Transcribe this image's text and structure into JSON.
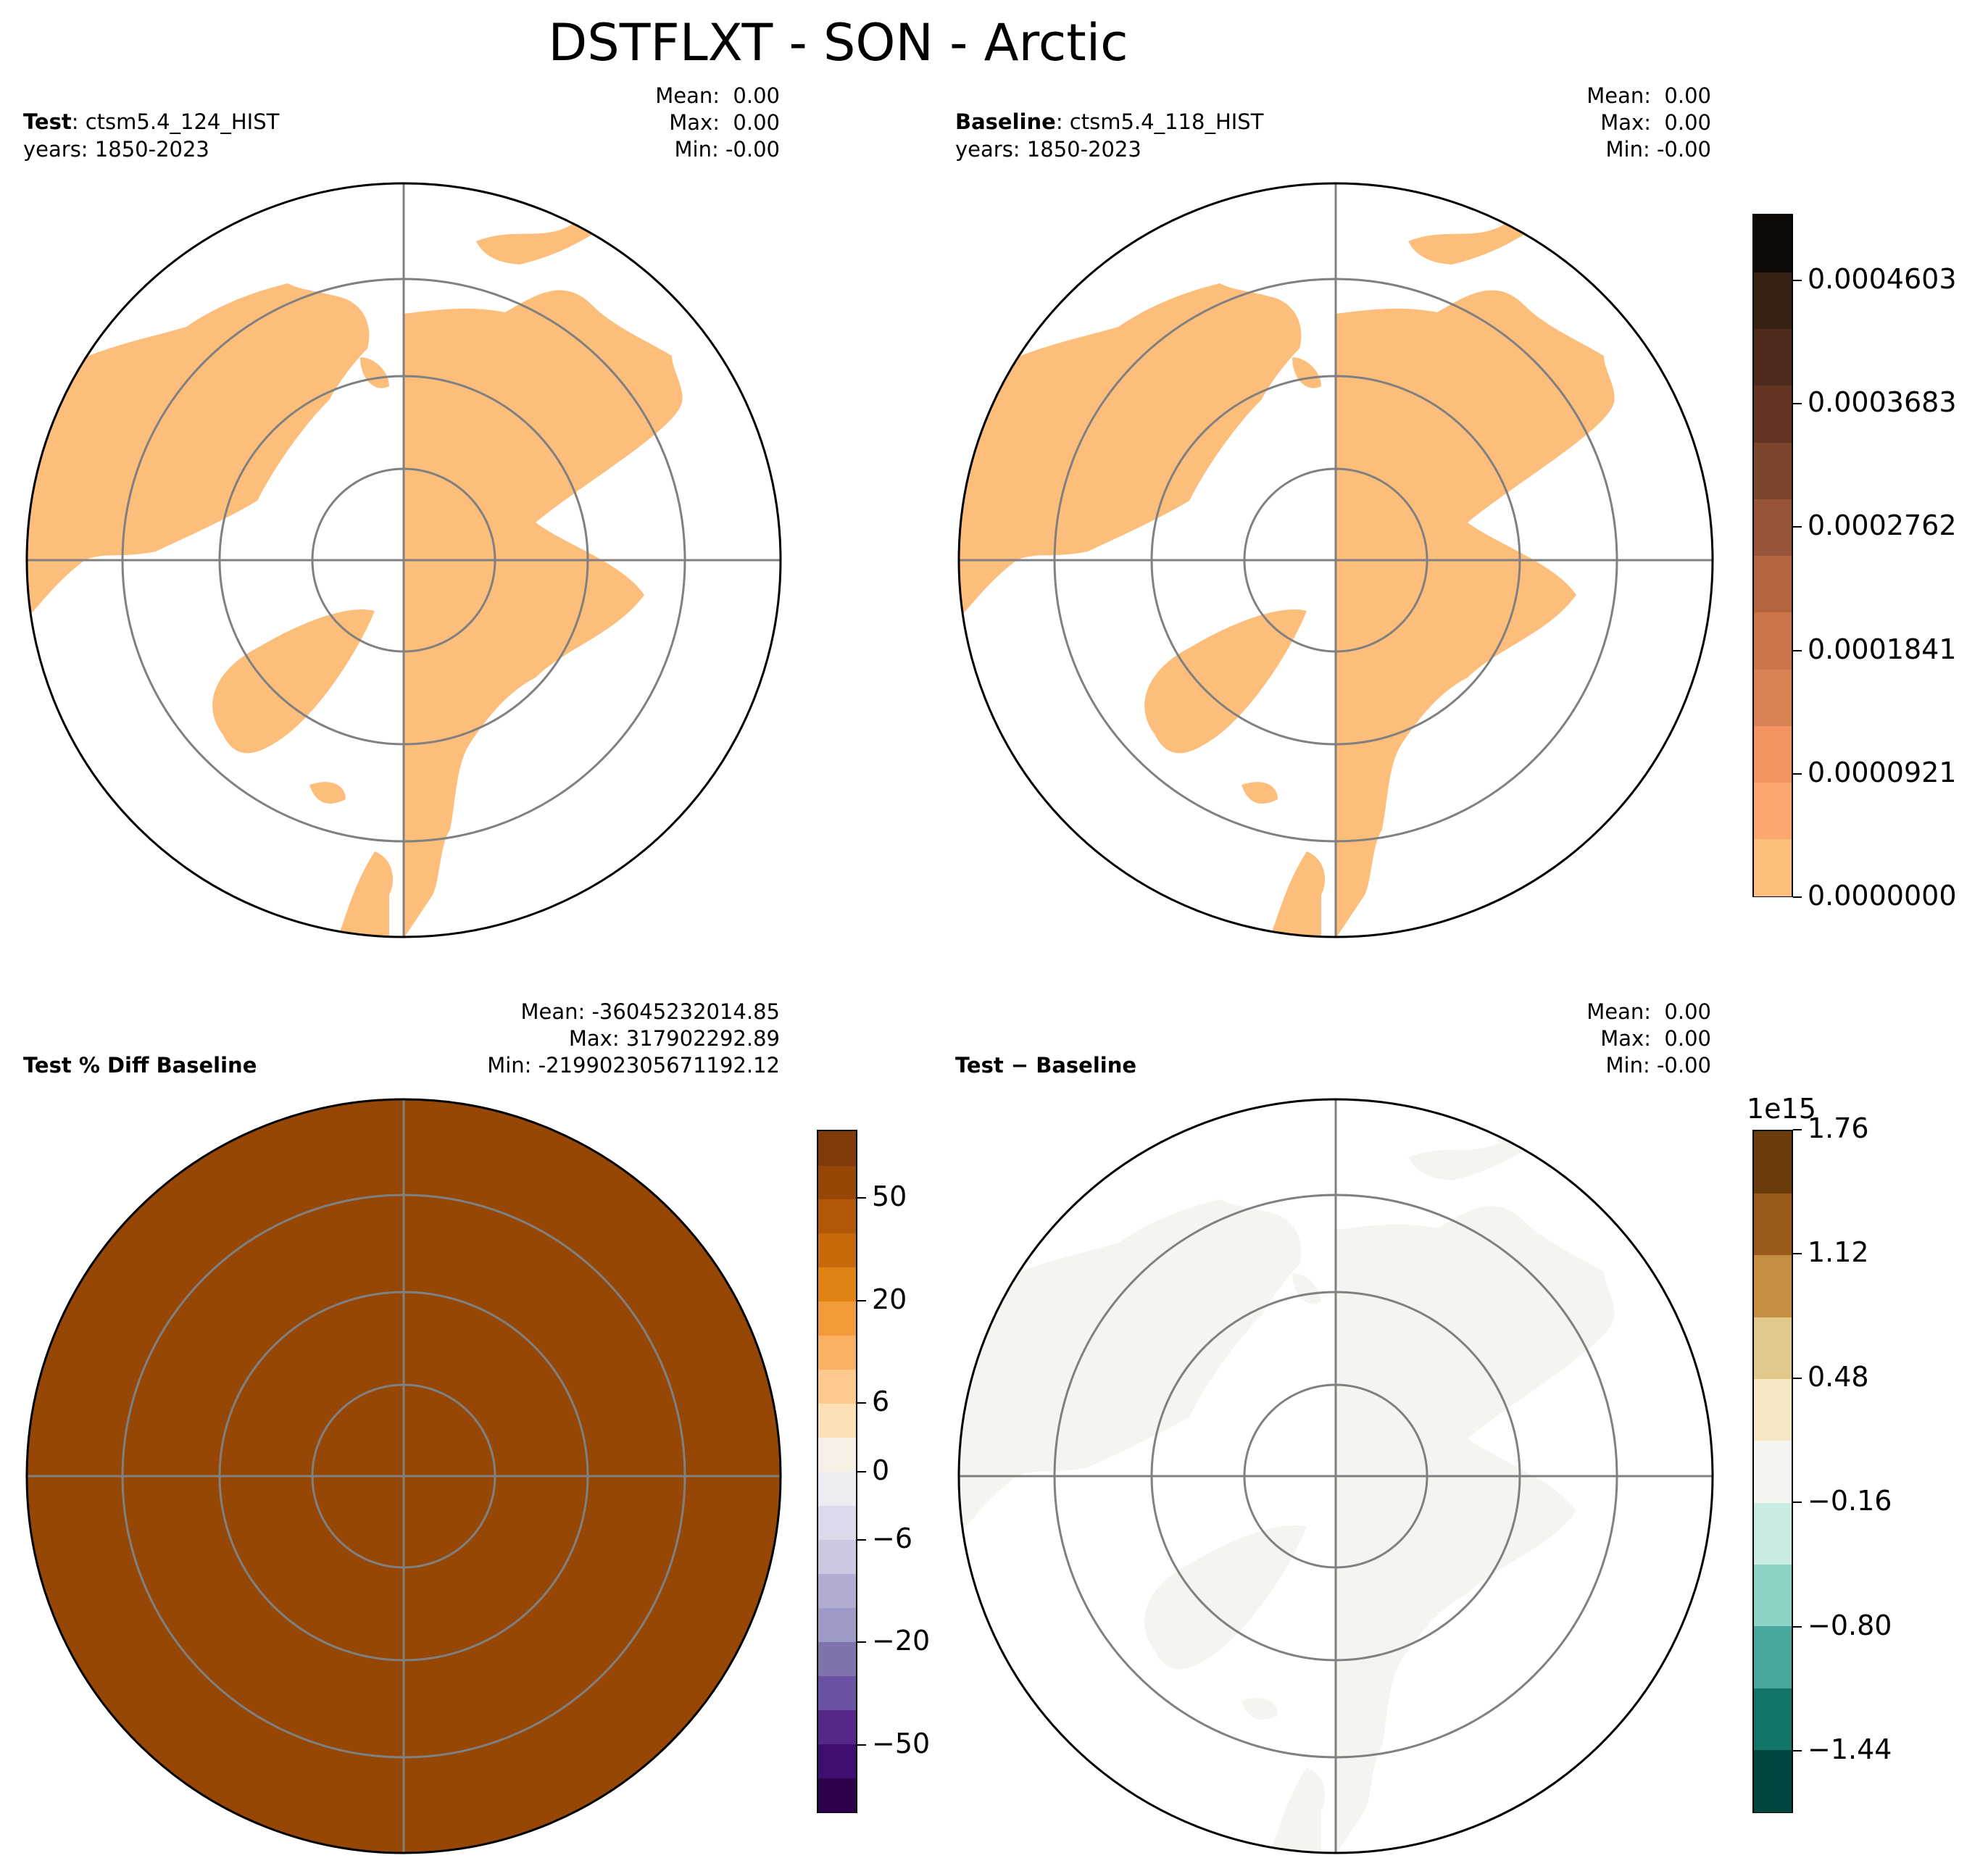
{
  "title": "DSTFLXT - SON - Arctic",
  "colors": {
    "land_test": "#fdbd7b",
    "land_pct": "#964705",
    "land_diff": "#f4f4f1",
    "grid": "#808080",
    "coast": "#000000"
  },
  "chart_data": [
    {
      "type": "heatmap",
      "projection": "north-polar-stereographic",
      "label_bold": "Test",
      "label_rest": ": ctsm5.4_124_HIST",
      "years": "years: 1850-2023",
      "stats": {
        "mean": "Mean:  0.00",
        "max": "Max:  0.00",
        "min": "Min: -0.00"
      }
    },
    {
      "type": "heatmap",
      "projection": "north-polar-stereographic",
      "label_bold": "Baseline",
      "label_rest": ": ctsm5.4_118_HIST",
      "years": "years: 1850-2023",
      "stats": {
        "mean": "Mean:  0.00",
        "max": "Max:  0.00",
        "min": "Min: -0.00"
      },
      "colorbar": {
        "ticks": [
          "0.0000000",
          "0.0000921",
          "0.0001841",
          "0.0002762",
          "0.0003683",
          "0.0004603"
        ],
        "range": [
          0,
          0.00051
        ],
        "colors": [
          "#fdbd7b",
          "#fba66e",
          "#f29360",
          "#d88152",
          "#c97449",
          "#b46540",
          "#985438",
          "#7c452d",
          "#643423",
          "#4e2a1d",
          "#372014",
          "#0d0906"
        ]
      }
    },
    {
      "type": "heatmap",
      "projection": "north-polar-stereographic",
      "label_bold": "Test % Diff Baseline",
      "stats": {
        "mean": "Mean: -36045232014.85",
        "max": "Max: 317902292.89",
        "min": "Min: -219902305671192.12"
      },
      "colorbar": {
        "ticks": [
          "−50",
          "−20",
          "−6",
          "0",
          "6",
          "20",
          "50"
        ],
        "colors": [
          "#2d004b",
          "#3f0e70",
          "#542788",
          "#6a51a3",
          "#8073ac",
          "#9e9ac8",
          "#b2abd2",
          "#cbc9e2",
          "#dadaeb",
          "#ececf3",
          "#f7f0e4",
          "#fee0b6",
          "#fdc98c",
          "#f9b062",
          "#f29a3a",
          "#e08214",
          "#c86a0c",
          "#b35806",
          "#964705",
          "#7f3b08"
        ]
      }
    },
    {
      "type": "heatmap",
      "projection": "north-polar-stereographic",
      "label_bold": "Test − Baseline",
      "stats": {
        "mean": "Mean:  0.00",
        "max": "Max:  0.00",
        "min": "Min: -0.00"
      },
      "colorbar": {
        "ticks": [
          "−1.44",
          "−0.80",
          "−0.16",
          "0.48",
          "1.12",
          "1.76"
        ],
        "range": [
          -1.76,
          1.76
        ],
        "multiplier": "1e15",
        "colors": [
          "#01463e",
          "#137468",
          "#4aa79b",
          "#8dd3c5",
          "#c9ebe4",
          "#f4f4f1",
          "#f6e8c6",
          "#e1c98b",
          "#c58e42",
          "#9a5b1a",
          "#6a3c0b"
        ]
      }
    }
  ]
}
